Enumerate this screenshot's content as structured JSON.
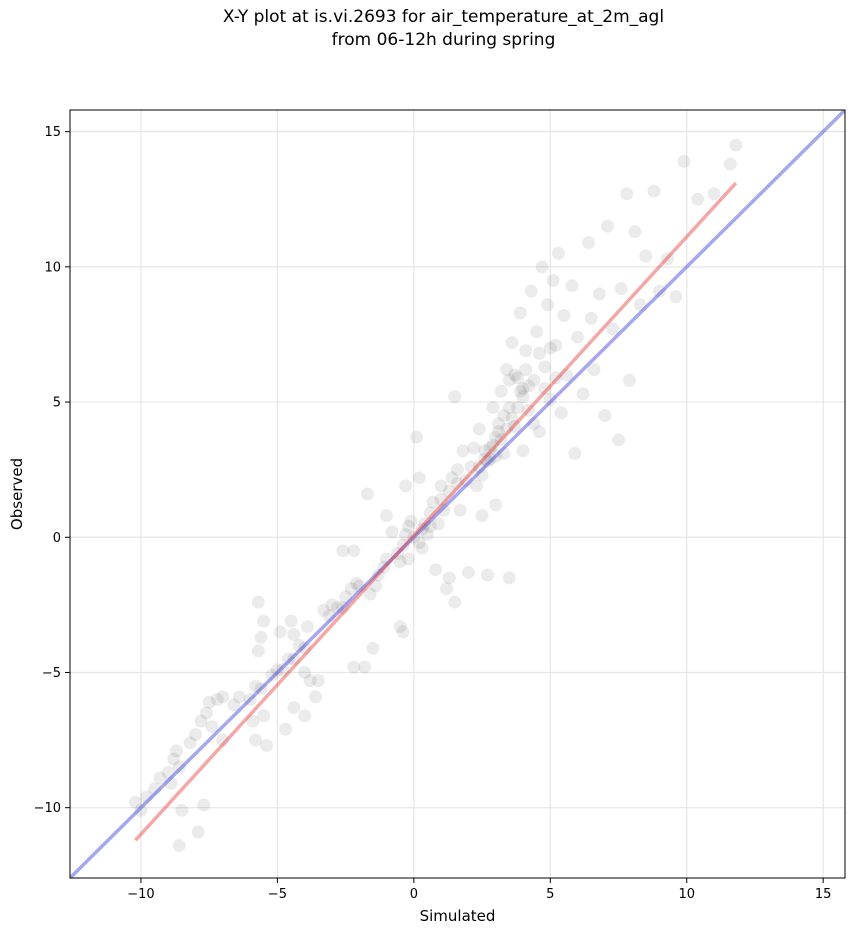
{
  "chart_data": {
    "type": "scatter",
    "title_lines": [
      "X-Y plot at is.vi.2693 for air_temperature_at_2m_agl",
      "from 06-12h during spring"
    ],
    "xlabel": "Simulated",
    "ylabel": "Observed",
    "xlim": [
      -12.6,
      15.8
    ],
    "ylim": [
      -12.6,
      15.8
    ],
    "xticks": [
      -10,
      -5,
      0,
      5,
      10,
      15
    ],
    "yticks": [
      -10,
      -5,
      0,
      5,
      10,
      15
    ],
    "grid": true,
    "legend": "none",
    "point_color": "#000000",
    "point_opacity": 0.08,
    "identity_line": {
      "x": [
        -12.6,
        15.8
      ],
      "y": [
        -12.6,
        15.8
      ],
      "color": "#3c3cdc"
    },
    "fit_line": {
      "x": [
        -10.2,
        11.8
      ],
      "y": [
        -11.2,
        13.1
      ],
      "color": "#e63c3c"
    },
    "points": [
      [
        -10.2,
        -9.8
      ],
      [
        -10.0,
        -10.1
      ],
      [
        -9.8,
        -9.6
      ],
      [
        -9.5,
        -9.3
      ],
      [
        -9.3,
        -8.9
      ],
      [
        -9.0,
        -8.7
      ],
      [
        -8.8,
        -8.2
      ],
      [
        -8.7,
        -7.9
      ],
      [
        -8.6,
        -8.5
      ],
      [
        -8.9,
        -9.1
      ],
      [
        -8.5,
        -10.1
      ],
      [
        -8.6,
        -11.4
      ],
      [
        -8.2,
        -7.6
      ],
      [
        -8.0,
        -7.3
      ],
      [
        -7.8,
        -6.8
      ],
      [
        -7.6,
        -6.5
      ],
      [
        -7.7,
        -9.9
      ],
      [
        -7.9,
        -10.9
      ],
      [
        -7.5,
        -6.1
      ],
      [
        -7.2,
        -6.0
      ],
      [
        -7.0,
        -5.9
      ],
      [
        -7.4,
        -7.0
      ],
      [
        -7.0,
        -7.5
      ],
      [
        -6.6,
        -6.2
      ],
      [
        -6.4,
        -5.9
      ],
      [
        -6.0,
        -6.0
      ],
      [
        -5.9,
        -6.8
      ],
      [
        -5.8,
        -5.5
      ],
      [
        -5.6,
        -5.6
      ],
      [
        -5.5,
        -6.6
      ],
      [
        -5.4,
        -7.7
      ],
      [
        -5.8,
        -7.5
      ],
      [
        -5.7,
        -4.2
      ],
      [
        -5.6,
        -3.7
      ],
      [
        -5.7,
        -2.4
      ],
      [
        -5.5,
        -3.1
      ],
      [
        -5.2,
        -5.1
      ],
      [
        -5.0,
        -4.9
      ],
      [
        -4.8,
        -4.9
      ],
      [
        -4.6,
        -4.5
      ],
      [
        -4.4,
        -4.5
      ],
      [
        -4.2,
        -4.0
      ],
      [
        -4.0,
        -4.1
      ],
      [
        -4.5,
        -3.1
      ],
      [
        -4.4,
        -3.6
      ],
      [
        -4.9,
        -3.5
      ],
      [
        -3.9,
        -3.3
      ],
      [
        -4.0,
        -5.0
      ],
      [
        -3.8,
        -5.3
      ],
      [
        -4.7,
        -7.1
      ],
      [
        -4.4,
        -6.3
      ],
      [
        -4.0,
        -6.6
      ],
      [
        -3.6,
        -5.9
      ],
      [
        -3.5,
        -5.3
      ],
      [
        -3.3,
        -2.7
      ],
      [
        -3.1,
        -2.9
      ],
      [
        -3.0,
        -2.5
      ],
      [
        -2.8,
        -2.6
      ],
      [
        -2.6,
        -2.6
      ],
      [
        -2.5,
        -2.2
      ],
      [
        -2.3,
        -1.9
      ],
      [
        -2.1,
        -1.7
      ],
      [
        -2.0,
        -1.8
      ],
      [
        -2.2,
        -0.5
      ],
      [
        -2.6,
        -0.5
      ],
      [
        -2.2,
        -4.8
      ],
      [
        -1.8,
        -4.8
      ],
      [
        -1.5,
        -4.1
      ],
      [
        -1.6,
        -2.1
      ],
      [
        -1.4,
        -1.8
      ],
      [
        -1.3,
        -1.4
      ],
      [
        -1.1,
        -1.1
      ],
      [
        -1.0,
        -0.8
      ],
      [
        -1.7,
        1.6
      ],
      [
        -1.0,
        0.8
      ],
      [
        -0.8,
        0.2
      ],
      [
        -0.6,
        -0.6
      ],
      [
        -0.5,
        -0.9
      ],
      [
        -0.4,
        -0.3
      ],
      [
        -0.3,
        0.1
      ],
      [
        -0.2,
        0.4
      ],
      [
        -0.1,
        0.6
      ],
      [
        -0.5,
        -3.3
      ],
      [
        -0.4,
        -3.5
      ],
      [
        -0.3,
        1.9
      ],
      [
        0.1,
        3.7
      ],
      [
        0.2,
        2.2
      ],
      [
        0.2,
        -0.2
      ],
      [
        0.3,
        0.3
      ],
      [
        0.4,
        0.5
      ],
      [
        0.5,
        0.1
      ],
      [
        0.6,
        0.9
      ],
      [
        0.7,
        1.3
      ],
      [
        0.8,
        -1.2
      ],
      [
        0.9,
        0.5
      ],
      [
        1.0,
        1.9
      ],
      [
        1.1,
        1.0
      ],
      [
        1.2,
        -1.9
      ],
      [
        1.3,
        -1.5
      ],
      [
        1.4,
        2.2
      ],
      [
        1.5,
        5.2
      ],
      [
        1.5,
        -2.4
      ],
      [
        1.6,
        2.5
      ],
      [
        1.7,
        1.0
      ],
      [
        1.8,
        3.2
      ],
      [
        1.9,
        2.1
      ],
      [
        2.0,
        -1.3
      ],
      [
        2.1,
        2.6
      ],
      [
        2.2,
        3.3
      ],
      [
        2.3,
        1.9
      ],
      [
        2.4,
        4.0
      ],
      [
        2.5,
        0.8
      ],
      [
        2.6,
        3.2
      ],
      [
        2.7,
        -1.4
      ],
      [
        2.8,
        2.9
      ],
      [
        2.9,
        4.8
      ],
      [
        3.0,
        3.7
      ],
      [
        3.0,
        1.2
      ],
      [
        3.1,
        4.2
      ],
      [
        3.2,
        5.4
      ],
      [
        3.3,
        3.1
      ],
      [
        3.4,
        6.2
      ],
      [
        3.5,
        4.8
      ],
      [
        3.5,
        -1.5
      ],
      [
        3.6,
        7.2
      ],
      [
        3.7,
        4.1
      ],
      [
        3.8,
        5.9
      ],
      [
        3.9,
        8.3
      ],
      [
        4.0,
        5.5
      ],
      [
        4.0,
        3.2
      ],
      [
        4.1,
        6.9
      ],
      [
        4.2,
        4.7
      ],
      [
        4.3,
        9.1
      ],
      [
        4.4,
        5.8
      ],
      [
        4.5,
        7.6
      ],
      [
        4.6,
        3.9
      ],
      [
        4.7,
        10.0
      ],
      [
        4.8,
        6.3
      ],
      [
        4.9,
        8.6
      ],
      [
        5.0,
        5.1
      ],
      [
        5.1,
        9.5
      ],
      [
        5.2,
        7.1
      ],
      [
        5.3,
        10.5
      ],
      [
        5.4,
        4.6
      ],
      [
        5.5,
        8.2
      ],
      [
        5.6,
        6.0
      ],
      [
        5.8,
        9.3
      ],
      [
        5.9,
        3.1
      ],
      [
        6.0,
        7.4
      ],
      [
        6.2,
        5.3
      ],
      [
        6.4,
        10.9
      ],
      [
        6.5,
        8.1
      ],
      [
        6.6,
        6.2
      ],
      [
        6.8,
        9.0
      ],
      [
        7.0,
        4.5
      ],
      [
        7.1,
        11.5
      ],
      [
        7.3,
        7.7
      ],
      [
        7.5,
        3.6
      ],
      [
        7.6,
        9.2
      ],
      [
        7.8,
        12.7
      ],
      [
        7.9,
        5.8
      ],
      [
        8.1,
        11.3
      ],
      [
        8.3,
        8.6
      ],
      [
        8.5,
        10.4
      ],
      [
        8.8,
        12.8
      ],
      [
        9.0,
        9.1
      ],
      [
        9.3,
        10.3
      ],
      [
        9.6,
        8.9
      ],
      [
        9.9,
        13.9
      ],
      [
        10.4,
        12.5
      ],
      [
        11.0,
        12.7
      ],
      [
        11.6,
        13.8
      ],
      [
        11.8,
        14.5
      ],
      [
        2.4,
        2.6
      ],
      [
        2.6,
        2.9
      ],
      [
        2.8,
        3.3
      ],
      [
        3.0,
        3.0
      ],
      [
        3.2,
        3.6
      ],
      [
        3.4,
        4.0
      ],
      [
        3.6,
        4.4
      ],
      [
        3.8,
        4.8
      ],
      [
        4.0,
        5.2
      ],
      [
        4.2,
        5.6
      ],
      [
        3.5,
        5.8
      ],
      [
        3.7,
        6.0
      ],
      [
        3.9,
        5.4
      ],
      [
        4.1,
        6.2
      ],
      [
        3.3,
        4.5
      ],
      [
        3.1,
        3.9
      ],
      [
        2.9,
        3.4
      ],
      [
        2.7,
        2.8
      ],
      [
        2.5,
        2.3
      ],
      [
        0.0,
        0.0
      ],
      [
        0.3,
        -0.4
      ],
      [
        0.6,
        0.4
      ],
      [
        -0.2,
        -0.8
      ],
      [
        1.0,
        1.4
      ],
      [
        1.3,
        1.7
      ],
      [
        1.6,
        2.0
      ],
      [
        4.6,
        6.8
      ],
      [
        4.8,
        5.5
      ],
      [
        5.0,
        7.0
      ],
      [
        5.2,
        5.9
      ],
      [
        4.4,
        4.2
      ]
    ]
  }
}
